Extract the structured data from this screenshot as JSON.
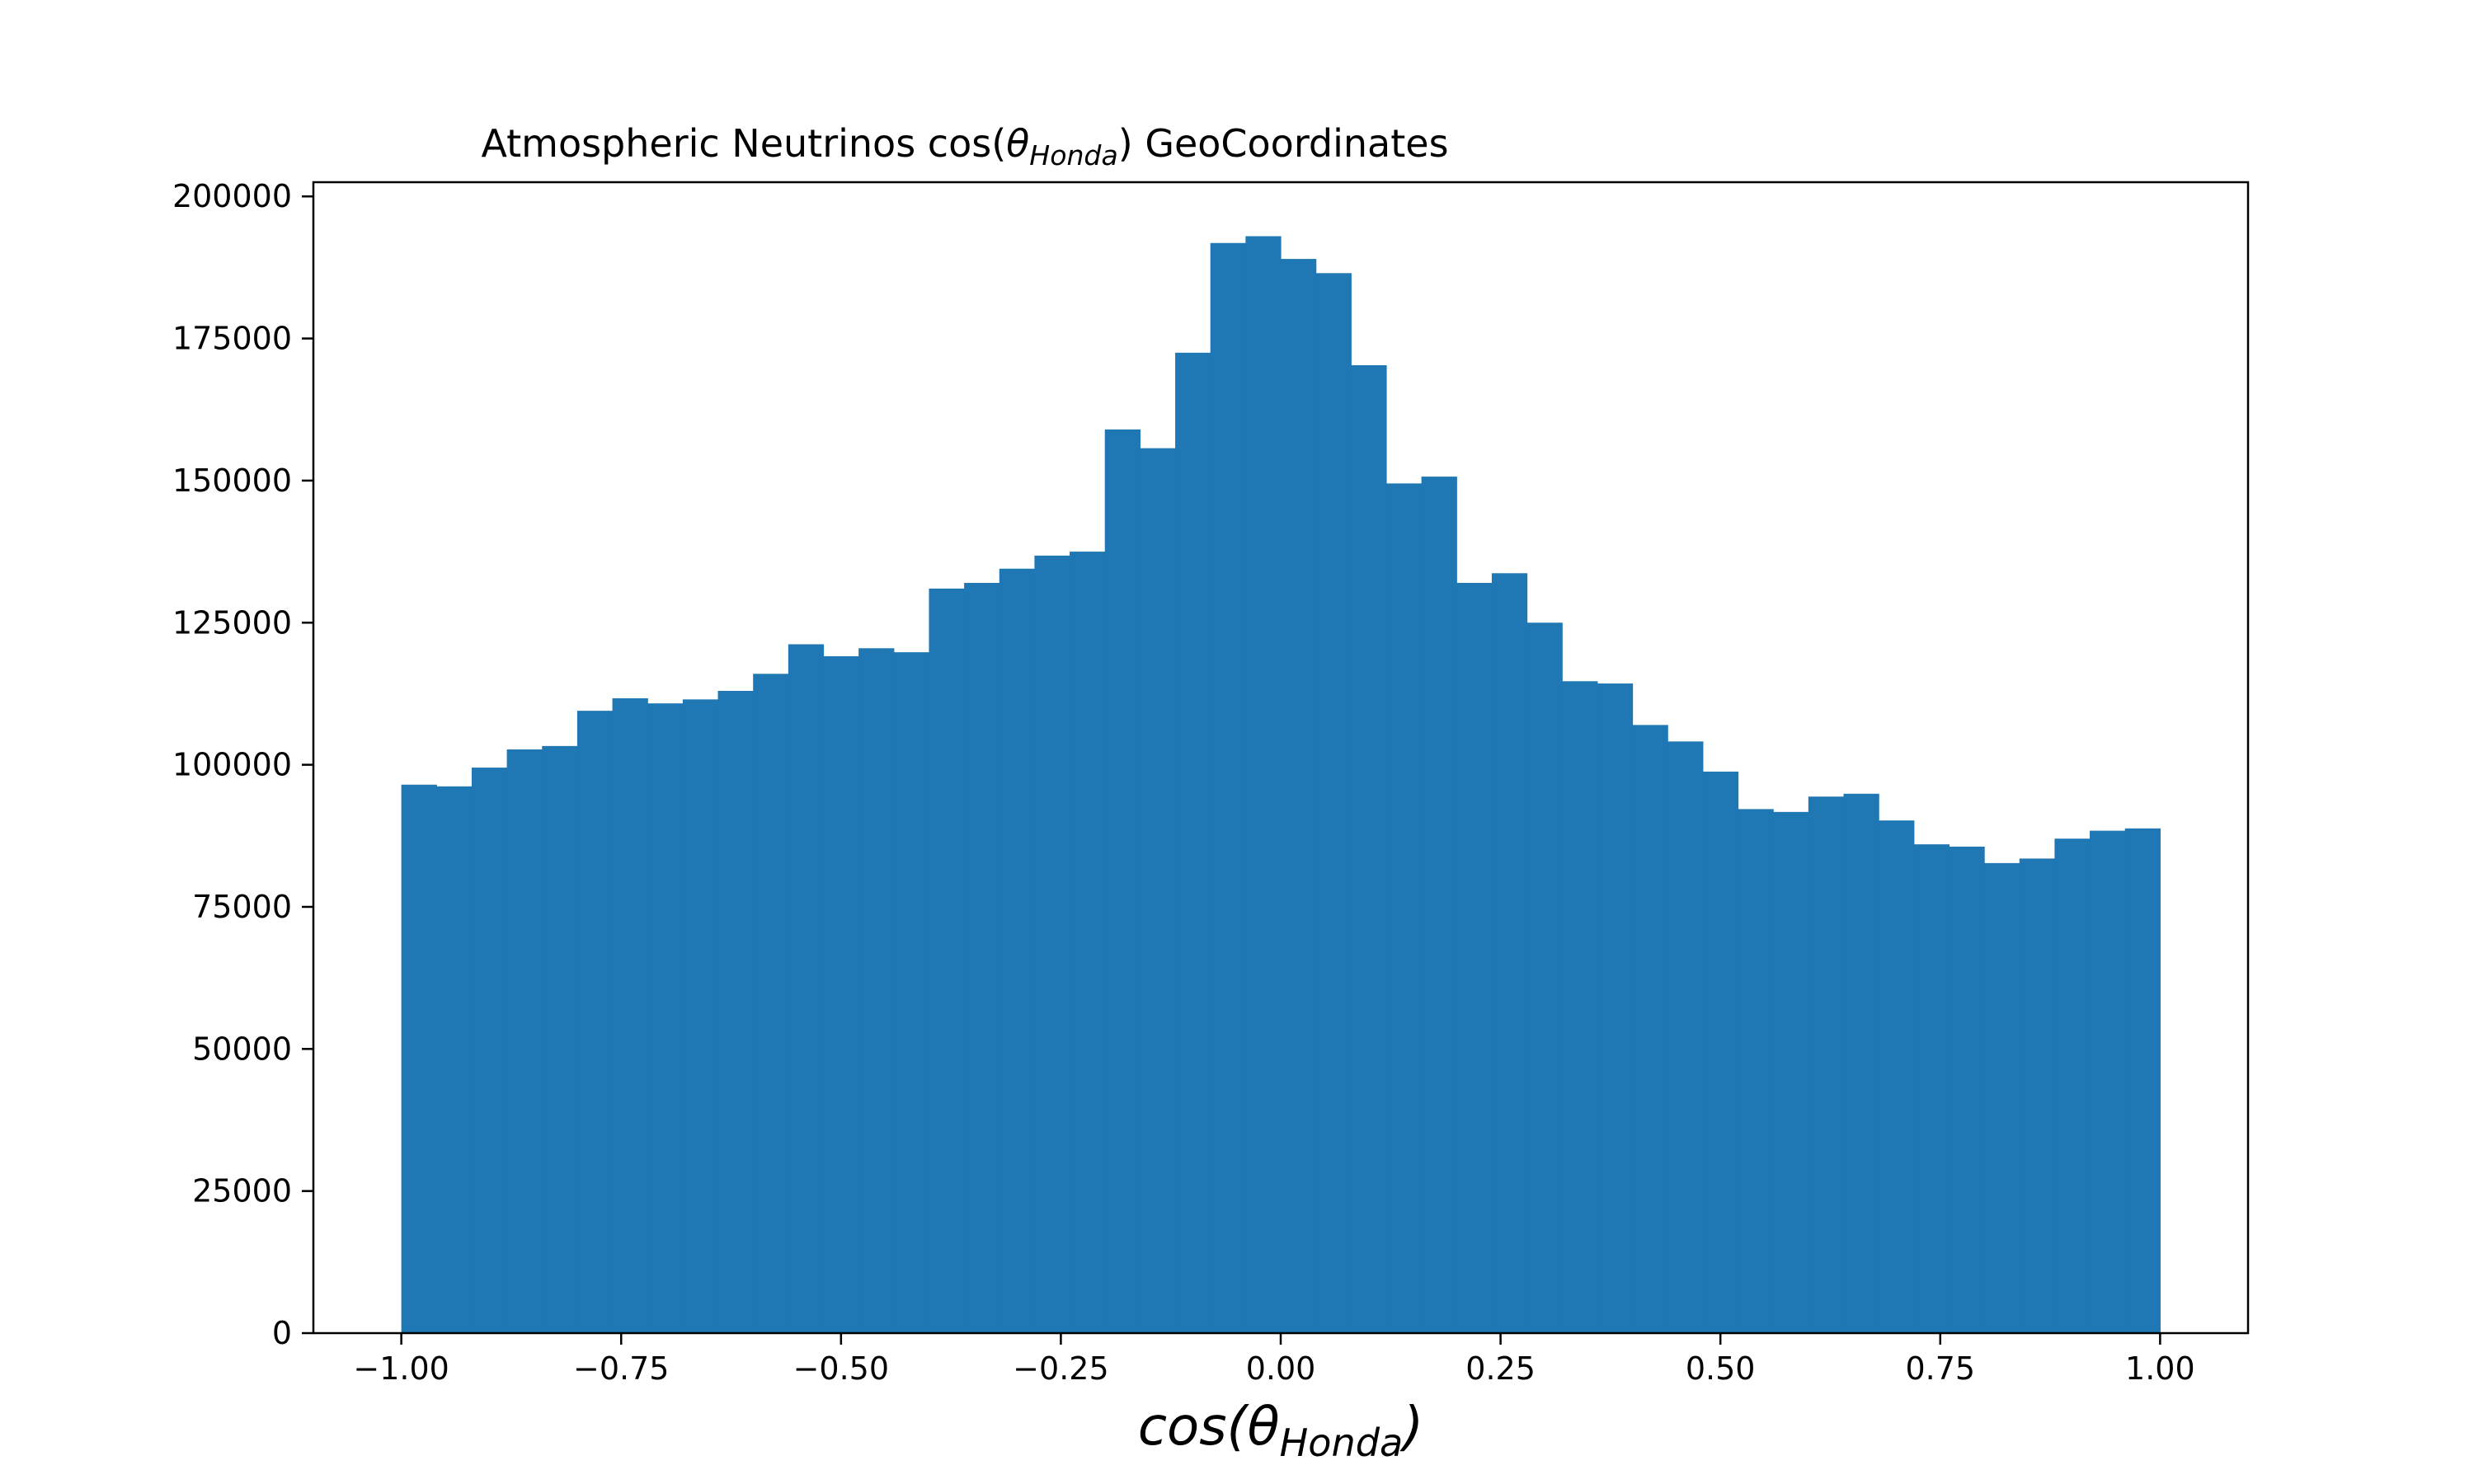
{
  "chart_data": {
    "type": "bar",
    "title": {
      "prefix": "Atmospheric Neutrinos cos(",
      "symbol": "θ",
      "subscript": "Honda",
      "suffix": ") GeoCoordinates"
    },
    "xlabel": {
      "prefix": "cos(",
      "symbol": "θ",
      "subscript": "Honda",
      "suffix": ")"
    },
    "ylabel": "",
    "xlim": [
      -1.1,
      1.1
    ],
    "ylim": [
      0,
      202500
    ],
    "bar_color": "#1f77b4",
    "bin_range": [
      -1.0,
      1.0
    ],
    "bin_count": 50,
    "values": [
      96500,
      96200,
      99500,
      102700,
      103300,
      109500,
      111700,
      110800,
      111500,
      113000,
      116000,
      121200,
      119100,
      120500,
      119800,
      131000,
      132000,
      134500,
      136800,
      137500,
      159000,
      155700,
      172500,
      191800,
      193000,
      189000,
      186500,
      170300,
      149500,
      150700,
      132000,
      133700,
      125000,
      114700,
      114300,
      107000,
      104100,
      98800,
      92200,
      91700,
      94400,
      94900,
      90200,
      86000,
      85600,
      82700,
      83500,
      87000,
      88400,
      88800
    ],
    "xticks": [
      "−1.00",
      "−0.75",
      "−0.50",
      "−0.25",
      "0.00",
      "0.25",
      "0.50",
      "0.75",
      "1.00"
    ],
    "xtick_values": [
      -1.0,
      -0.75,
      -0.5,
      -0.25,
      0.0,
      0.25,
      0.5,
      0.75,
      1.0
    ],
    "yticks": [
      "0",
      "25000",
      "50000",
      "75000",
      "100000",
      "125000",
      "150000",
      "175000",
      "200000"
    ],
    "ytick_values": [
      0,
      25000,
      50000,
      75000,
      100000,
      125000,
      150000,
      175000,
      200000
    ],
    "grid": false,
    "legend": "none"
  }
}
